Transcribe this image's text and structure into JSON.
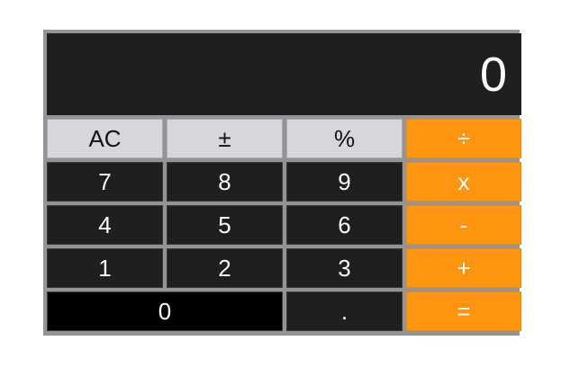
{
  "display": {
    "value": "0"
  },
  "keys": {
    "clear": "AC",
    "sign": "±",
    "percent": "%",
    "divide": "÷",
    "seven": "7",
    "eight": "8",
    "nine": "9",
    "multiply": "x",
    "four": "4",
    "five": "5",
    "six": "6",
    "subtract": "-",
    "one": "1",
    "two": "2",
    "three": "3",
    "add": "+",
    "zero": "0",
    "decimal": ".",
    "equals": "="
  },
  "colors": {
    "operator": "#ff9410",
    "function": "#d7d6dd",
    "number": "#1f1f1f",
    "frame": "#949494"
  }
}
